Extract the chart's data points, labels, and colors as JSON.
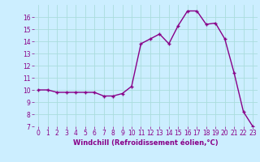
{
  "x": [
    0,
    1,
    2,
    3,
    4,
    5,
    6,
    7,
    8,
    9,
    10,
    11,
    12,
    13,
    14,
    15,
    16,
    17,
    18,
    19,
    20,
    21,
    22,
    23
  ],
  "y": [
    10.0,
    10.0,
    9.8,
    9.8,
    9.8,
    9.8,
    9.8,
    9.5,
    9.5,
    9.7,
    10.3,
    13.8,
    14.2,
    14.6,
    13.8,
    15.3,
    16.5,
    16.5,
    15.4,
    15.5,
    14.2,
    11.4,
    8.2,
    7.0
  ],
  "xlabel": "Windchill (Refroidissement éolien,°C)",
  "ylim": [
    7,
    17
  ],
  "xlim": [
    -0.5,
    23.5
  ],
  "yticks": [
    7,
    8,
    9,
    10,
    11,
    12,
    13,
    14,
    15,
    16
  ],
  "xticks": [
    0,
    1,
    2,
    3,
    4,
    5,
    6,
    7,
    8,
    9,
    10,
    11,
    12,
    13,
    14,
    15,
    16,
    17,
    18,
    19,
    20,
    21,
    22,
    23
  ],
  "line_color": "#880088",
  "marker": "+",
  "bg_color": "#cceeff",
  "grid_color": "#aadddd",
  "label_color": "#880088",
  "tick_fontsize": 5.5,
  "xlabel_fontsize": 6,
  "linewidth": 1.0,
  "markersize": 3
}
